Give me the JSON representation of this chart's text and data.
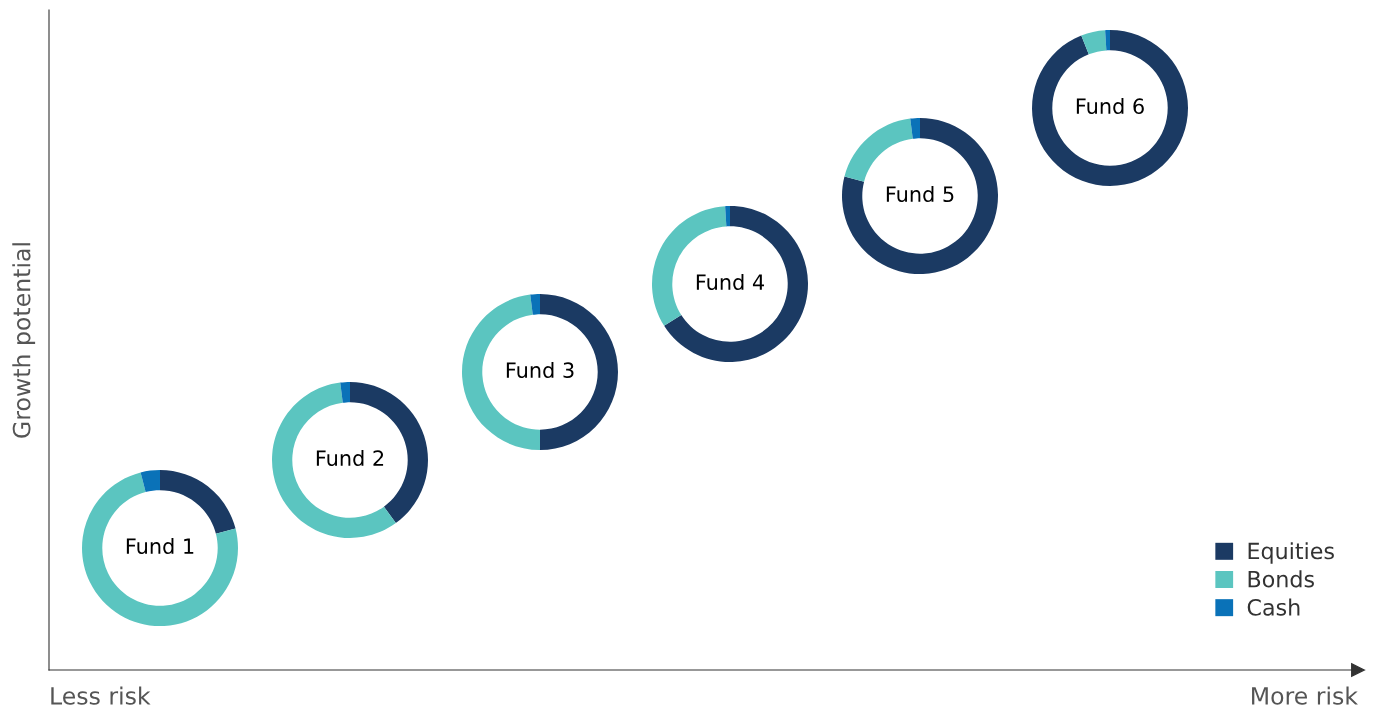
{
  "chart_data": {
    "type": "donut",
    "ylabel": "Growth potential",
    "annotations": [
      "Less risk",
      "More risk"
    ],
    "categories": [
      "Equities",
      "Bonds",
      "Cash"
    ],
    "colors": [
      "#1b3a63",
      "#5bc5c0",
      "#0a72b8"
    ],
    "legend": "bottom right",
    "series": [
      {
        "name": "Fund 1",
        "values": [
          21,
          75,
          4
        ]
      },
      {
        "name": "Fund 2",
        "values": [
          40,
          58,
          2
        ]
      },
      {
        "name": "Fund 3",
        "values": [
          50,
          48,
          2
        ]
      },
      {
        "name": "Fund 4",
        "values": [
          66,
          33,
          1
        ]
      },
      {
        "name": "Fund 5",
        "values": [
          79,
          19,
          2
        ]
      },
      {
        "name": "Fund 6",
        "values": [
          94,
          5,
          1
        ]
      }
    ]
  }
}
